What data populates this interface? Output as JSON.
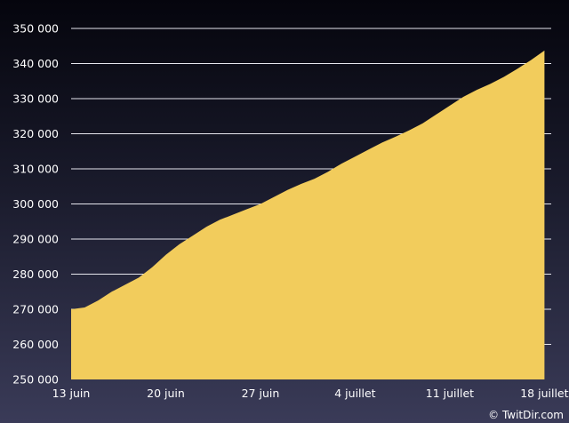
{
  "chart_data": {
    "type": "area",
    "x_labels": [
      "13 juin",
      "20 juin",
      "27 juin",
      "4 juillet",
      "11 juillet",
      "18 juillet"
    ],
    "y_ticks": [
      "250 000",
      "260 000",
      "270 000",
      "280 000",
      "290 000",
      "300 000",
      "310 000",
      "320 000",
      "330 000",
      "340 000",
      "350 000"
    ],
    "ylim": [
      250000,
      350000
    ],
    "xlim": [
      0,
      35.5
    ],
    "grid": true,
    "colors": {
      "area": "#F2CC5C",
      "grid": "#E6E6EE",
      "text": "#FFFFFF"
    },
    "series": [
      {
        "points": [
          [
            0,
            270000
          ],
          [
            1,
            270500
          ],
          [
            2,
            272500
          ],
          [
            3,
            275000
          ],
          [
            4,
            277000
          ],
          [
            5,
            279000
          ],
          [
            6,
            282000
          ],
          [
            7,
            285500
          ],
          [
            8,
            288500
          ],
          [
            9,
            291000
          ],
          [
            10,
            293500
          ],
          [
            11,
            295500
          ],
          [
            12,
            297000
          ],
          [
            13,
            298500
          ],
          [
            14,
            300000
          ],
          [
            15,
            302000
          ],
          [
            16,
            304000
          ],
          [
            17,
            305700
          ],
          [
            18,
            307200
          ],
          [
            19,
            309200
          ],
          [
            20,
            311500
          ],
          [
            21,
            313500
          ],
          [
            22,
            315500
          ],
          [
            23,
            317500
          ],
          [
            24,
            319200
          ],
          [
            25,
            321000
          ],
          [
            26,
            323000
          ],
          [
            27,
            325500
          ],
          [
            28,
            328000
          ],
          [
            29,
            330500
          ],
          [
            30,
            332500
          ],
          [
            31,
            334200
          ],
          [
            32,
            336200
          ],
          [
            33,
            338500
          ],
          [
            34,
            341000
          ],
          [
            35,
            343700
          ]
        ]
      }
    ]
  },
  "credit": "© TwitDir.com"
}
